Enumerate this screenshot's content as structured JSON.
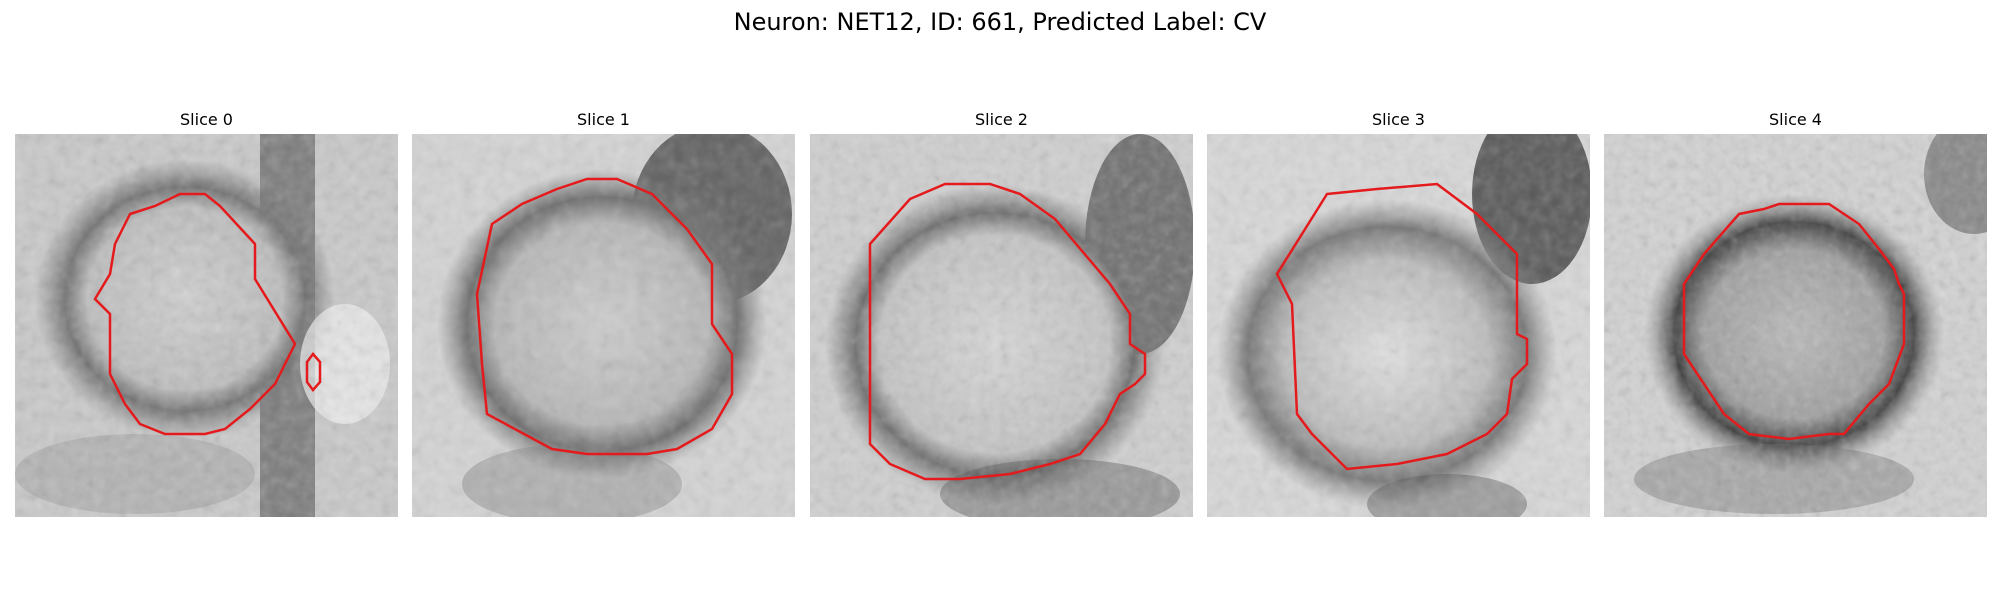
{
  "figure": {
    "title": "Neuron: NET12, ID: 661, Predicted Label: CV"
  },
  "slices": [
    {
      "title": "Slice 0"
    },
    {
      "title": "Slice 1"
    },
    {
      "title": "Slice 2"
    },
    {
      "title": "Slice 3"
    },
    {
      "title": "Slice 4"
    }
  ],
  "colors": {
    "contour": "#e41a1c",
    "background": "#ffffff"
  }
}
